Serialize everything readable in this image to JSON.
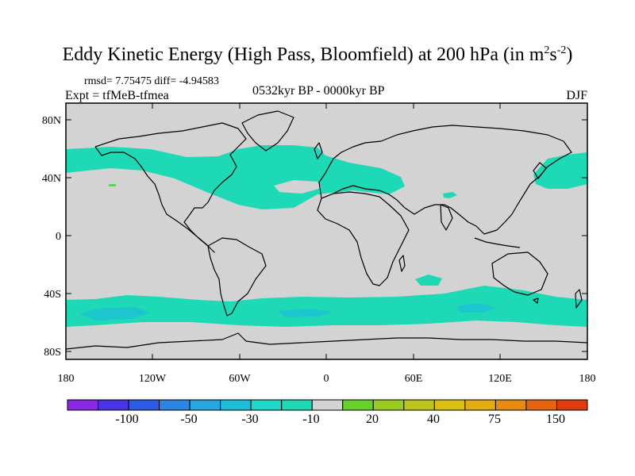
{
  "title": {
    "main": "Eddy Kinetic Energy (High Pass, Bloomfield) at 200 hPa (in m",
    "sup1": "2",
    "mid": "s",
    "sup2": "-2",
    "end": ")"
  },
  "rmsd_text": "rmsd= 7.75475 diff= -4.94583",
  "expt_text": "Expt = tfMeB-tfmea",
  "period_text": "0532kyr BP - 0000kyr BP",
  "season_text": "DJF",
  "colors": {
    "land_bg": "#d3d3d3",
    "anomaly": "#1ed9b6",
    "anomaly_strong": "#1ed0c6",
    "green": "#5ad35a"
  },
  "map": {
    "lat_ticks": [
      "80N",
      "40N",
      "0",
      "40S",
      "80S"
    ],
    "lon_ticks": [
      "180",
      "120W",
      "60W",
      "0",
      "60E",
      "120E",
      "180"
    ]
  },
  "colorbar": {
    "colors": [
      "#8a28e6",
      "#4a32e6",
      "#2d5be6",
      "#2c84e3",
      "#27a6e0",
      "#1cbfd9",
      "#1ed9c9",
      "#1ed9b4",
      "#d3d3d3",
      "#66d128",
      "#9acc20",
      "#bcc61a",
      "#d9c012",
      "#e3ad10",
      "#e88a0f",
      "#e6640f",
      "#e03c10"
    ],
    "labels": [
      "-100",
      "-50",
      "-30",
      "-10",
      "20",
      "40",
      "75",
      "150"
    ]
  }
}
